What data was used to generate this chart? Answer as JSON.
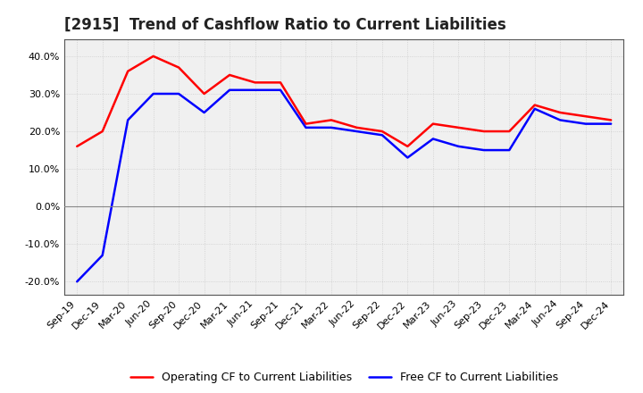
{
  "title": "[2915]  Trend of Cashflow Ratio to Current Liabilities",
  "x_labels": [
    "Sep-19",
    "Dec-19",
    "Mar-20",
    "Jun-20",
    "Sep-20",
    "Dec-20",
    "Mar-21",
    "Jun-21",
    "Sep-21",
    "Dec-21",
    "Mar-22",
    "Jun-22",
    "Sep-22",
    "Dec-22",
    "Mar-23",
    "Jun-23",
    "Sep-23",
    "Dec-23",
    "Mar-24",
    "Jun-24",
    "Sep-24",
    "Dec-24"
  ],
  "operating_cf": [
    0.16,
    0.2,
    0.36,
    0.4,
    0.37,
    0.3,
    0.35,
    0.33,
    0.33,
    0.22,
    0.23,
    0.21,
    0.2,
    0.16,
    0.22,
    0.21,
    0.2,
    0.2,
    0.27,
    0.25,
    0.24,
    0.23
  ],
  "free_cf": [
    -0.2,
    -0.13,
    0.23,
    0.3,
    0.3,
    0.25,
    0.31,
    0.31,
    0.31,
    0.21,
    0.21,
    0.2,
    0.19,
    0.13,
    0.18,
    0.16,
    0.15,
    0.15,
    0.26,
    0.23,
    0.22,
    0.22
  ],
  "operating_color": "#ff0000",
  "free_color": "#0000ff",
  "ylim": [
    -0.235,
    0.445
  ],
  "yticks": [
    -0.2,
    -0.1,
    0.0,
    0.1,
    0.2,
    0.3,
    0.4
  ],
  "background_color": "#ffffff",
  "plot_bg_color": "#f0f0f0",
  "grid_color": "#cccccc",
  "legend_operating": "Operating CF to Current Liabilities",
  "legend_free": "Free CF to Current Liabilities",
  "title_fontsize": 12,
  "tick_fontsize": 8,
  "legend_fontsize": 9,
  "linewidth": 1.8
}
